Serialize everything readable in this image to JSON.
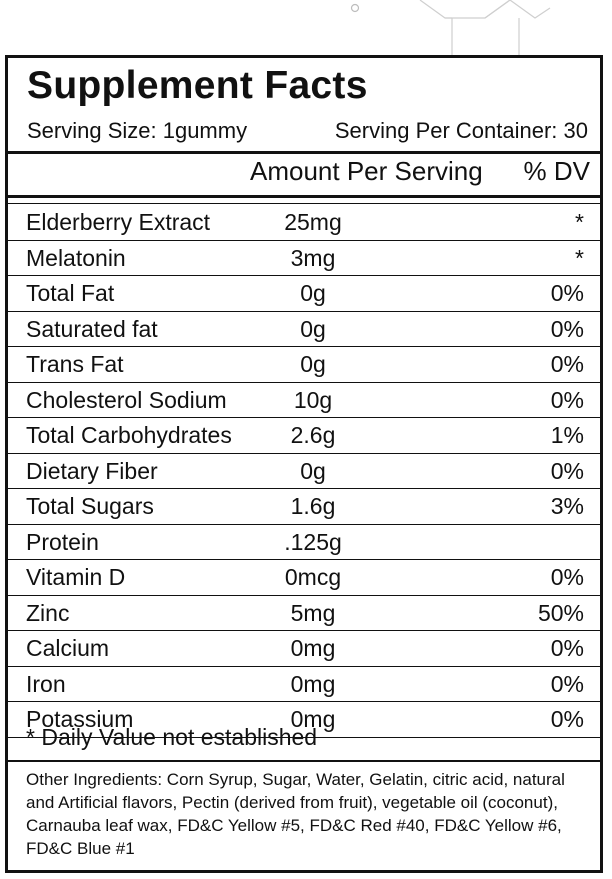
{
  "label": {
    "title": "Supplement Facts",
    "serving_size": "Serving Size: 1gummy",
    "servings_per_container": "Serving Per Container: 30",
    "column_amount": "Amount Per Serving",
    "column_dv": "% DV",
    "rows": [
      {
        "name": "Elderberry Extract",
        "amount": "25mg",
        "dv": "*"
      },
      {
        "name": "Melatonin",
        "amount": "3mg",
        "dv": "*"
      },
      {
        "name": "Total Fat",
        "amount": "0g",
        "dv": "0%"
      },
      {
        "name": "Saturated fat",
        "amount": "0g",
        "dv": "0%"
      },
      {
        "name": "Trans Fat",
        "amount": "0g",
        "dv": "0%"
      },
      {
        "name": "Cholesterol Sodium",
        "amount": "10g",
        "dv": "0%"
      },
      {
        "name": "Total Carbohydrates",
        "amount": "2.6g",
        "dv": "1%"
      },
      {
        "name": "Dietary Fiber",
        "amount": "0g",
        "dv": "0%"
      },
      {
        "name": "Total Sugars",
        "amount": "1.6g",
        "dv": "3%"
      },
      {
        "name": "Protein",
        "amount": ".125g",
        "dv": ""
      },
      {
        "name": "Vitamin D",
        "amount": "0mcg",
        "dv": "0%"
      },
      {
        "name": "Zinc",
        "amount": "5mg",
        "dv": "50%"
      },
      {
        "name": "Calcium",
        "amount": "0mg",
        "dv": "0%"
      },
      {
        "name": "Iron",
        "amount": "0mg",
        "dv": "0%"
      },
      {
        "name": "Potassium",
        "amount": "0mg",
        "dv": "0%"
      }
    ],
    "footnote": "* Daily Value not established",
    "other_ingredients": "Other Ingredients: Corn Syrup, Sugar, Water, Gelatin, citric acid, natural and Artificial flavors, Pectin (derived from fruit), vegetable oil (coconut), Carnauba leaf wax, FD&C Yellow #5, FD&C Red #40, FD&C Yellow #6, FD&C Blue #1"
  }
}
